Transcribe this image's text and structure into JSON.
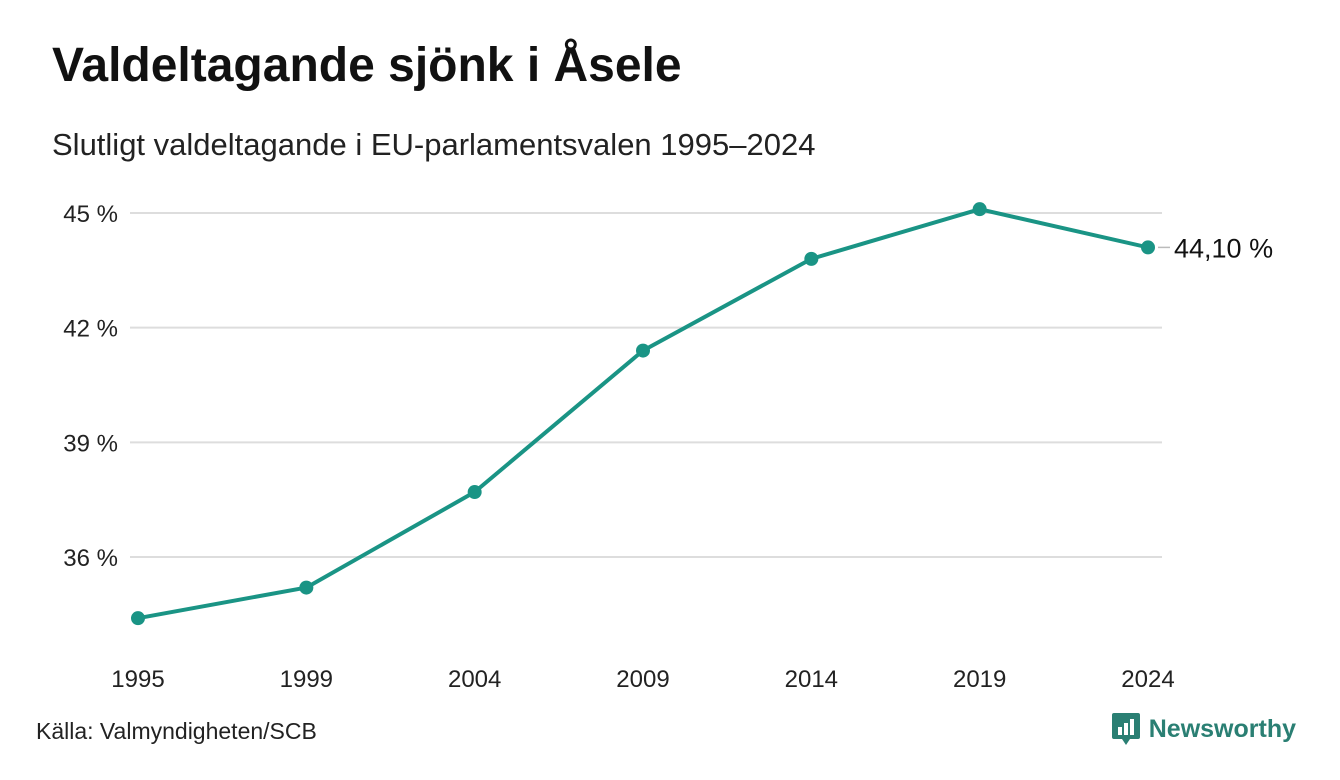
{
  "header": {
    "title": "Valdeltagande sjönk i Åsele",
    "subtitle": "Slutligt valdeltagande i EU-parlamentsvalen 1995–2024"
  },
  "footer": {
    "source": "Källa: Valmyndigheten/SCB",
    "brand": "Newsworthy",
    "brand_icon": "newsworthy-logo-icon"
  },
  "colors": {
    "line": "#1a9485",
    "grid": "#dddddd",
    "brand": "#2a7f73"
  },
  "chart_data": {
    "type": "line",
    "title": "Valdeltagande sjönk i Åsele",
    "subtitle": "Slutligt valdeltagande i EU-parlamentsvalen 1995–2024",
    "xlabel": "",
    "ylabel": "",
    "x": [
      "1995",
      "1999",
      "2004",
      "2009",
      "2014",
      "2019",
      "2024"
    ],
    "series": [
      {
        "values": [
          34.4,
          35.2,
          37.7,
          41.4,
          43.8,
          45.1,
          44.1
        ]
      }
    ],
    "y_ticks": [
      36,
      39,
      42,
      45
    ],
    "y_tick_labels": [
      "36 %",
      "39 %",
      "42 %",
      "45 %"
    ],
    "ylim": [
      33.4,
      45.9
    ],
    "grid": true,
    "legend": "none",
    "end_label": "44,10 %"
  }
}
